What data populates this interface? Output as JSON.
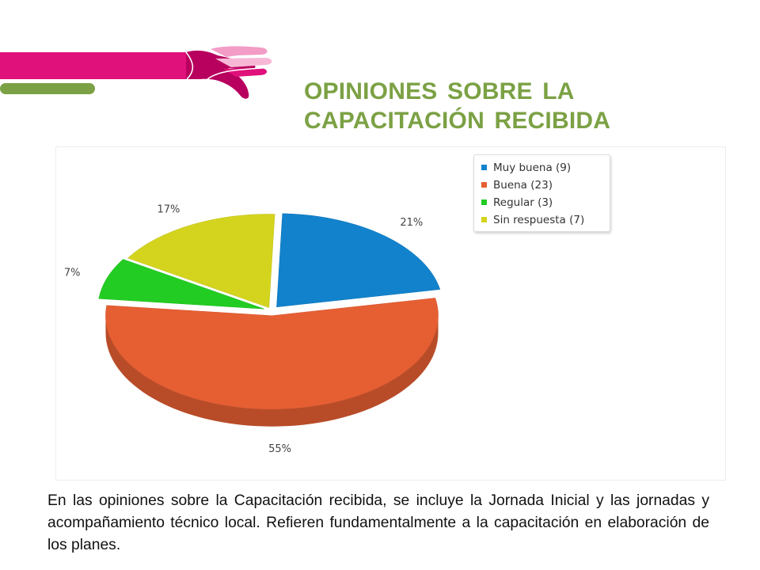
{
  "slide": {
    "title_line1": "OPINIONES SOBRE LA",
    "title_line2": "CAPACITACIÓN RECIBIDA",
    "body": "En las opiniones sobre la Capacitación recibida, se incluye la Jornada Inicial y las jornadas y acompañamiento técnico local. Refieren fundamentalmente a la capacitación en elaboración de los planes."
  },
  "colors": {
    "title": "#7ba144",
    "decor_magenta": "#e0117a",
    "decor_pink": "#f29cc6",
    "decor_green": "#7ba144"
  },
  "chart_data": {
    "type": "pie",
    "style": "3d-exploded",
    "legend_position": "top-right",
    "slices": [
      {
        "name": "Muy buena (9)",
        "value": 9,
        "percent": "21%",
        "color": "#1282cc"
      },
      {
        "name": "Buena (23)",
        "value": 23,
        "percent": "55%",
        "color": "#e65f33"
      },
      {
        "name": "Regular (3)",
        "value": 3,
        "percent": "7%",
        "color": "#22cc22"
      },
      {
        "name": "Sin respuesta (7)",
        "value": 7,
        "percent": "17%",
        "color": "#d4d41e"
      }
    ]
  }
}
